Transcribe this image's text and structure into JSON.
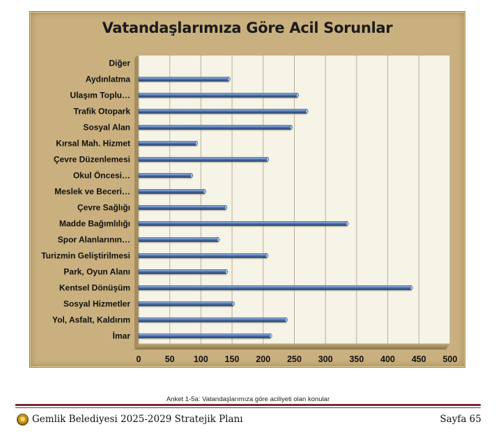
{
  "chart_data": {
    "type": "bar",
    "orientation": "horizontal",
    "title": "Vatandaşlarımıza Göre Acil Sorunlar",
    "categories": [
      "Diğer",
      "Aydınlatma",
      "Ulaşım Toplu…",
      "Trafik Otopark",
      "Sosyal Alan",
      "Kırsal Mah. Hizmet",
      "Çevre Düzenlemesi",
      "Okul Öncesi…",
      "Meslek ve Beceri…",
      "Çevre Sağlığı",
      "Madde Bağımlılığı",
      "Spor Alanlarının…",
      "Turizmin Geliştirilmesi",
      "Park, Oyun Alanı",
      "Kentsel Dönüşüm",
      "Sosyal Hizmetler",
      "Yol, Asfalt, Kaldırım",
      "İmar"
    ],
    "values": [
      0,
      145,
      255,
      270,
      245,
      93,
      207,
      85,
      106,
      140,
      335,
      128,
      206,
      141,
      438,
      152,
      237,
      212
    ],
    "xlim": [
      0,
      500
    ],
    "xticks": [
      0,
      50,
      100,
      150,
      200,
      250,
      300,
      350,
      400,
      450,
      500
    ],
    "grid": "vertical",
    "legend": "none",
    "colors": {
      "bar": "#4f78b3",
      "bar_light": "#a8c3ea",
      "bar_dark": "#223f70",
      "plot_background": "#f6f3e7",
      "frame": "#c9b07e"
    }
  },
  "caption": "Anket 1-5a: Vatandaşlarımıza göre aciliyeti olan konular",
  "footer": {
    "left": "Gemlik Belediyesi 2025-2029 Stratejik Planı",
    "right": "Sayfa 65",
    "logo_icon": "municipality-seal-icon"
  }
}
